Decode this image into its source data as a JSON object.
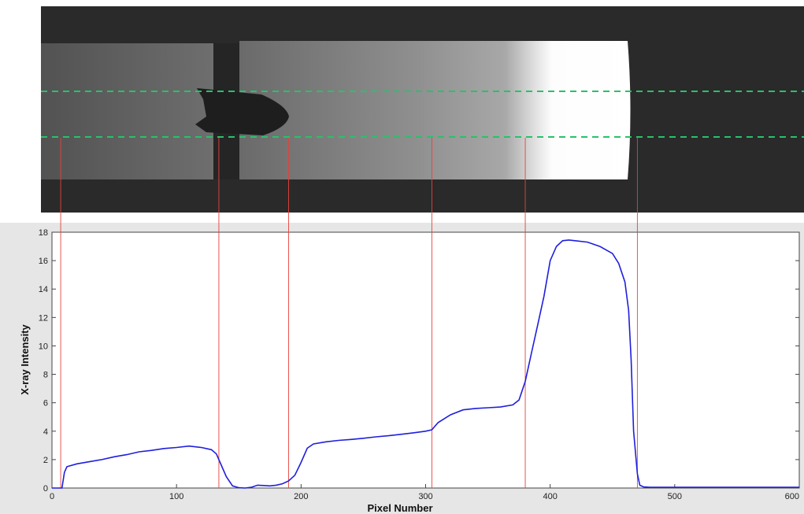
{
  "chart_data": {
    "type": "line",
    "title": "",
    "xlabel": "Pixel Number",
    "ylabel": "X-ray Intensity",
    "xlim": [
      0,
      600
    ],
    "ylim": [
      0,
      18
    ],
    "xticks": [
      0,
      100,
      200,
      300,
      400,
      500,
      600
    ],
    "yticks": [
      0,
      2,
      4,
      6,
      8,
      10,
      12,
      14,
      16,
      18
    ],
    "grid": false,
    "legend": "none",
    "series_color": "#1f1fdc",
    "marker_line_color": "#e8423a",
    "guide_line_color": "#27c26b",
    "series": [
      {
        "x": [
          0,
          8,
          10,
          12,
          20,
          30,
          40,
          50,
          60,
          70,
          80,
          90,
          100,
          110,
          120,
          128,
          132,
          135,
          140,
          145,
          150,
          155,
          160,
          165,
          170,
          175,
          180,
          185,
          190,
          195,
          200,
          205,
          210,
          220,
          230,
          240,
          250,
          260,
          270,
          280,
          290,
          300,
          305,
          310,
          320,
          330,
          340,
          350,
          360,
          370,
          375,
          380,
          385,
          390,
          395,
          400,
          405,
          410,
          415,
          420,
          430,
          440,
          450,
          455,
          460,
          463,
          465,
          467,
          470,
          472,
          475,
          480,
          500,
          600
        ],
        "y": [
          0,
          0,
          1.1,
          1.5,
          1.7,
          1.85,
          2.0,
          2.2,
          2.35,
          2.55,
          2.65,
          2.78,
          2.85,
          2.95,
          2.85,
          2.7,
          2.4,
          1.8,
          0.8,
          0.15,
          0.02,
          0.0,
          0.05,
          0.2,
          0.18,
          0.15,
          0.2,
          0.3,
          0.5,
          0.9,
          1.8,
          2.8,
          3.1,
          3.25,
          3.35,
          3.42,
          3.5,
          3.6,
          3.68,
          3.78,
          3.88,
          4.0,
          4.1,
          4.6,
          5.15,
          5.5,
          5.6,
          5.65,
          5.7,
          5.85,
          6.2,
          7.5,
          9.5,
          11.5,
          13.5,
          16.0,
          17.0,
          17.4,
          17.45,
          17.4,
          17.3,
          17.0,
          16.5,
          15.8,
          14.5,
          12.5,
          9.0,
          4.0,
          1.0,
          0.2,
          0.08,
          0.05,
          0.05,
          0.05
        ]
      }
    ],
    "marker_lines_x": [
      7,
      134,
      190,
      305,
      380,
      470
    ]
  }
}
